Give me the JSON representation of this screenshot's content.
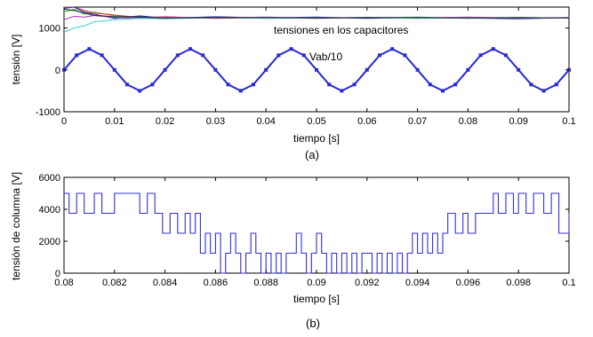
{
  "chart_data": [
    {
      "type": "line",
      "panel_label": "(a)",
      "xlabel": "tiempo [s]",
      "ylabel": "tensión [V]",
      "xlim": [
        0,
        0.1
      ],
      "ylim": [
        -1000,
        1500
      ],
      "xticks": [
        "0",
        "0.01",
        "0.02",
        "0.03",
        "0.04",
        "0.05",
        "0.06",
        "0.07",
        "0.08",
        "0.09",
        "0.1"
      ],
      "yticks": [
        "-1000",
        "0",
        "1000"
      ],
      "grid": false,
      "annotations": [
        "tensiones en los capacitores",
        "Vab/10"
      ],
      "series": [
        {
          "name": "Vab/10",
          "color": "#2a2ad4",
          "x": [
            0,
            0.0025,
            0.005,
            0.0075,
            0.01,
            0.0125,
            0.015,
            0.0175,
            0.02,
            0.0225,
            0.025,
            0.0275,
            0.03,
            0.0325,
            0.035,
            0.0375,
            0.04,
            0.0425,
            0.045,
            0.0475,
            0.05,
            0.0525,
            0.055,
            0.0575,
            0.06,
            0.0625,
            0.065,
            0.0675,
            0.07,
            0.0725,
            0.075,
            0.0775,
            0.08,
            0.0825,
            0.085,
            0.0875,
            0.09,
            0.0925,
            0.095,
            0.0975,
            0.1
          ],
          "y": [
            0,
            350,
            500,
            350,
            0,
            -350,
            -500,
            -350,
            0,
            350,
            500,
            350,
            0,
            -350,
            -500,
            -350,
            0,
            350,
            500,
            350,
            0,
            -350,
            -500,
            -350,
            0,
            350,
            500,
            350,
            0,
            -350,
            -500,
            -350,
            0,
            350,
            500,
            350,
            0,
            -350,
            -500,
            -350,
            0
          ]
        },
        {
          "color": "#3cc83c",
          "x": [
            0,
            0.002,
            0.004,
            0.006,
            0.01,
            0.015,
            0.02,
            0.03,
            0.04,
            0.05,
            0.06,
            0.07,
            0.08,
            0.09,
            0.1
          ],
          "y": [
            1380,
            1450,
            1330,
            1380,
            1290,
            1270,
            1240,
            1260,
            1230,
            1250,
            1240,
            1260,
            1230,
            1250,
            1240
          ]
        },
        {
          "color": "#e03030",
          "x": [
            0,
            0.002,
            0.004,
            0.006,
            0.01,
            0.015,
            0.02,
            0.03,
            0.04,
            0.05,
            0.06,
            0.07,
            0.08,
            0.09,
            0.1
          ],
          "y": [
            1500,
            1500,
            1420,
            1360,
            1310,
            1250,
            1270,
            1230,
            1250,
            1230,
            1250,
            1230,
            1250,
            1230,
            1250
          ]
        },
        {
          "color": "#2030b0",
          "x": [
            0,
            0.002,
            0.004,
            0.006,
            0.01,
            0.015,
            0.02,
            0.03,
            0.04,
            0.05,
            0.06,
            0.07,
            0.08,
            0.09,
            0.1
          ],
          "y": [
            1470,
            1500,
            1380,
            1330,
            1230,
            1290,
            1230,
            1270,
            1240,
            1260,
            1230,
            1250,
            1240,
            1220,
            1250
          ]
        },
        {
          "color": "#b040c0",
          "x": [
            0,
            0.002,
            0.004,
            0.006,
            0.01,
            0.015,
            0.02,
            0.03,
            0.04,
            0.05,
            0.06,
            0.07,
            0.08,
            0.09,
            0.1
          ],
          "y": [
            1200,
            1280,
            1260,
            1300,
            1250,
            1230,
            1260,
            1240,
            1260,
            1240,
            1250,
            1240,
            1260,
            1240,
            1250
          ]
        },
        {
          "color": "#40d0d0",
          "x": [
            0,
            0.002,
            0.004,
            0.006,
            0.01,
            0.015,
            0.02,
            0.03,
            0.04,
            0.05,
            0.06,
            0.07,
            0.08,
            0.09,
            0.1
          ],
          "y": [
            900,
            1000,
            1050,
            1150,
            1200,
            1230,
            1220,
            1250,
            1230,
            1240,
            1250,
            1230,
            1240,
            1250,
            1240
          ]
        },
        {
          "color": "#303030",
          "x": [
            0,
            0.002,
            0.004,
            0.006,
            0.01,
            0.015,
            0.02,
            0.03,
            0.04,
            0.05,
            0.06,
            0.07,
            0.08,
            0.09,
            0.1
          ],
          "y": [
            1450,
            1420,
            1360,
            1300,
            1270,
            1260,
            1240,
            1250,
            1250,
            1240,
            1250,
            1250,
            1240,
            1250,
            1240
          ]
        }
      ]
    },
    {
      "type": "line",
      "panel_label": "(b)",
      "xlabel": "tiempo [s]",
      "ylabel": "tensión de columna [V]",
      "xlim": [
        0.08,
        0.1
      ],
      "ylim": [
        0,
        6000
      ],
      "xticks": [
        "0.08",
        "0.082",
        "0.084",
        "0.086",
        "0.088",
        "0.09",
        "0.092",
        "0.094",
        "0.096",
        "0.098",
        "0.1"
      ],
      "yticks": [
        "0",
        "2000",
        "4000",
        "6000"
      ],
      "grid": false,
      "series": [
        {
          "color": "#3030d8",
          "step": true,
          "x": [
            0.08,
            0.0802,
            0.0805,
            0.0808,
            0.0812,
            0.0815,
            0.082,
            0.0825,
            0.083,
            0.0833,
            0.0836,
            0.0839,
            0.0842,
            0.0845,
            0.0848,
            0.085,
            0.0852,
            0.0854,
            0.0856,
            0.0858,
            0.086,
            0.0862,
            0.0864,
            0.0866,
            0.0868,
            0.087,
            0.0872,
            0.0874,
            0.0876,
            0.0878,
            0.088,
            0.0882,
            0.0884,
            0.0886,
            0.0888,
            0.089,
            0.0892,
            0.0894,
            0.0896,
            0.0898,
            0.09,
            0.0902,
            0.0904,
            0.0906,
            0.0908,
            0.091,
            0.0912,
            0.0914,
            0.0916,
            0.0918,
            0.092,
            0.0922,
            0.0924,
            0.0926,
            0.0928,
            0.093,
            0.0932,
            0.0934,
            0.0936,
            0.0938,
            0.094,
            0.0942,
            0.0944,
            0.0946,
            0.0948,
            0.095,
            0.0952,
            0.0955,
            0.0958,
            0.096,
            0.0963,
            0.0966,
            0.097,
            0.0972,
            0.0975,
            0.0978,
            0.098,
            0.0983,
            0.0986,
            0.099,
            0.0993,
            0.0996,
            0.1
          ],
          "y": [
            5000,
            3750,
            5000,
            3750,
            5000,
            3750,
            5000,
            5000,
            3750,
            5000,
            3750,
            2500,
            3750,
            2500,
            3750,
            2500,
            3750,
            1250,
            2500,
            1250,
            2500,
            0,
            1250,
            2500,
            1250,
            0,
            1250,
            2500,
            1250,
            0,
            1250,
            0,
            1250,
            0,
            1250,
            1250,
            2500,
            1250,
            0,
            1250,
            2500,
            1250,
            0,
            1250,
            0,
            1250,
            0,
            1250,
            0,
            1250,
            1250,
            0,
            1250,
            0,
            1250,
            0,
            1250,
            0,
            1250,
            2500,
            1250,
            2500,
            1250,
            2500,
            1250,
            2500,
            3750,
            2500,
            3750,
            2500,
            3750,
            3750,
            5000,
            3750,
            5000,
            3750,
            5000,
            3750,
            5000,
            3750,
            5000,
            2500,
            3750
          ]
        }
      ]
    }
  ]
}
